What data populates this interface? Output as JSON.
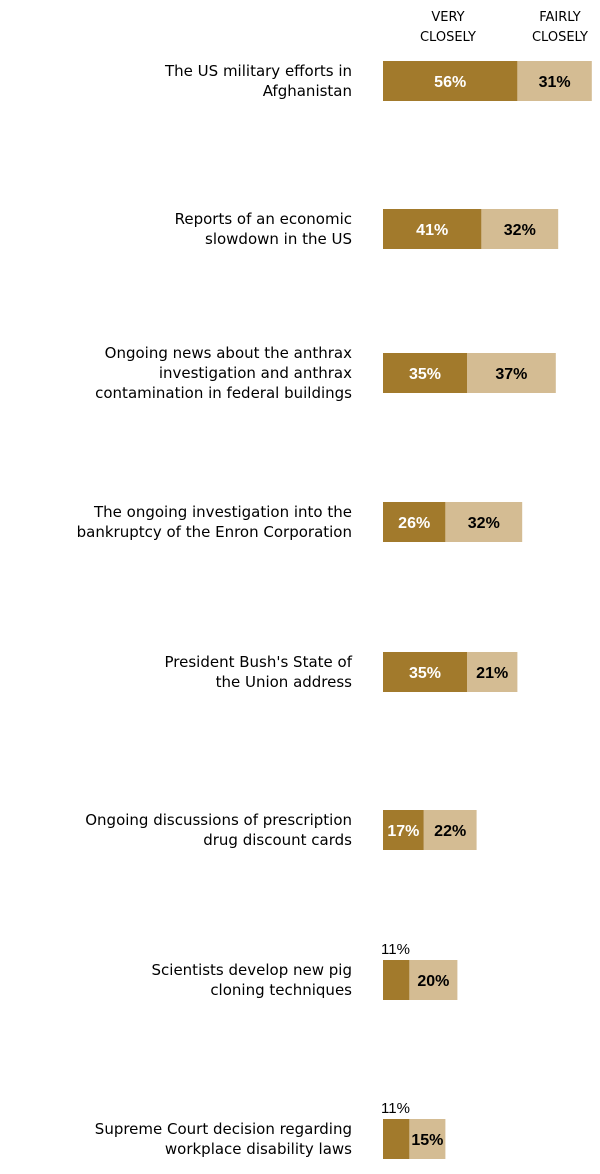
{
  "chart_data": {
    "type": "bar",
    "stacked": true,
    "orientation": "horizontal",
    "colors": {
      "very": "#a27a2c",
      "fairly": "#d4bc93"
    },
    "series": [
      {
        "name": "VERY CLOSELY",
        "values": [
          56,
          41,
          35,
          26,
          35,
          17,
          11,
          11
        ]
      },
      {
        "name": "FAIRLY CLOSELY",
        "values": [
          31,
          32,
          37,
          32,
          21,
          22,
          20,
          15
        ]
      }
    ],
    "categories": [
      [
        "The US military efforts in",
        "Afghanistan"
      ],
      [
        "Reports of an economic",
        "slowdown in the US"
      ],
      [
        "Ongoing news about the anthrax",
        "investigation and anthrax",
        "contamination in federal buildings"
      ],
      [
        "The ongoing investigation into the",
        "bankruptcy of the Enron Corporation"
      ],
      [
        "President Bush's State of",
        "the Union address"
      ],
      [
        "Ongoing discussions of prescription",
        "drug discount cards"
      ],
      [
        "Scientists develop new pig",
        "cloning techniques"
      ],
      [
        "Supreme Court decision regarding",
        "workplace disability laws"
      ]
    ],
    "labels": {
      "very": [
        "56%",
        "41%",
        "35%",
        "26%",
        "35%",
        "17%",
        "11%",
        "11%"
      ],
      "fairly": [
        "31%",
        "32%",
        "37%",
        "32%",
        "21%",
        "22%",
        "20%",
        "15%"
      ]
    },
    "legend": {
      "very_line1": "VERY",
      "very_line2": "CLOSELY",
      "fairly_line1": "FAIRLY",
      "fairly_line2": "CLOSELY"
    }
  }
}
